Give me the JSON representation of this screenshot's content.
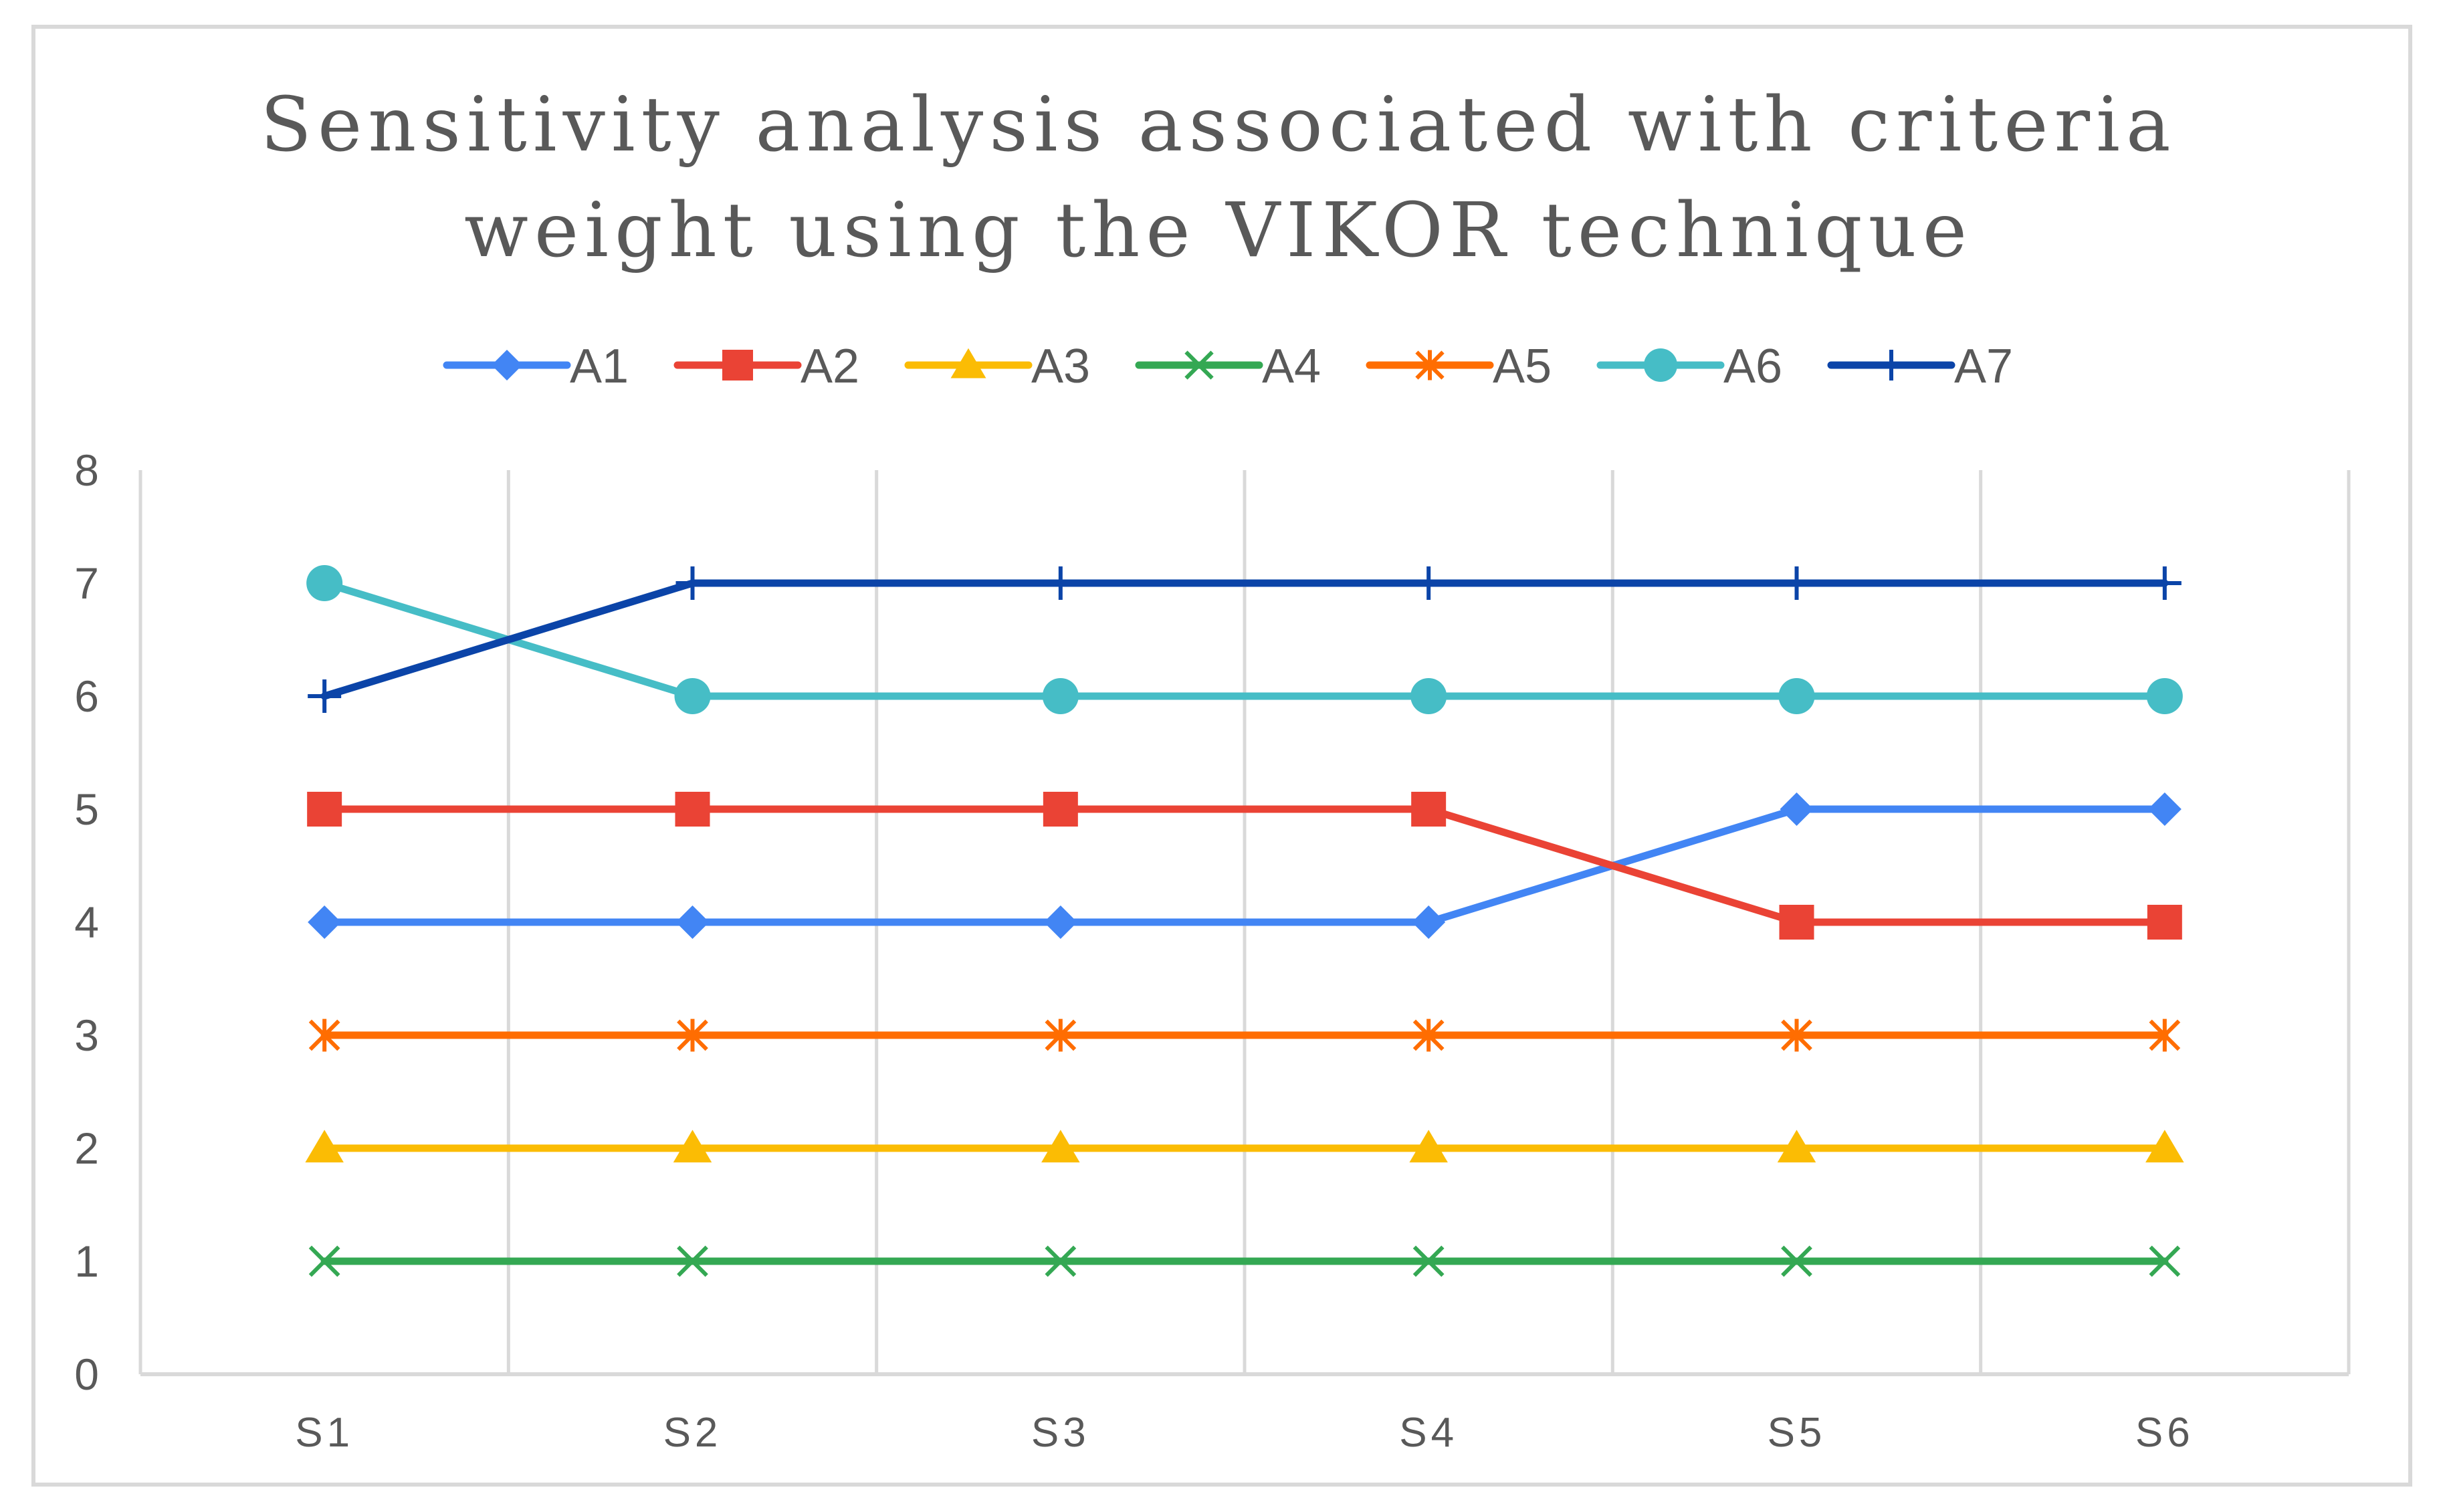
{
  "chart_data": {
    "type": "line",
    "title": "Sensitivity analysis associated with criteria weight using the VIKOR technique",
    "title_lines": [
      "Sensitivity analysis associated with criteria",
      "weight using the VIKOR technique"
    ],
    "xlabel": "",
    "ylabel": "",
    "categories": [
      "S1",
      "S2",
      "S3",
      "S4",
      "S5",
      "S6"
    ],
    "ylim": [
      0,
      8
    ],
    "yticks": [
      0,
      1,
      2,
      3,
      4,
      5,
      6,
      7,
      8
    ],
    "grid": "vertical",
    "legend_position": "top",
    "series": [
      {
        "name": "A1",
        "color": "#4285F4",
        "marker": "diamond",
        "values": [
          4,
          4,
          4,
          4,
          5,
          5
        ]
      },
      {
        "name": "A2",
        "color": "#EA4335",
        "marker": "square",
        "values": [
          5,
          5,
          5,
          5,
          4,
          4
        ]
      },
      {
        "name": "A3",
        "color": "#FBBC04",
        "marker": "triangle",
        "values": [
          2,
          2,
          2,
          2,
          2,
          2
        ]
      },
      {
        "name": "A4",
        "color": "#34A853",
        "marker": "x",
        "values": [
          1,
          1,
          1,
          1,
          1,
          1
        ]
      },
      {
        "name": "A5",
        "color": "#FF6D01",
        "marker": "star",
        "values": [
          3,
          3,
          3,
          3,
          3,
          3
        ]
      },
      {
        "name": "A6",
        "color": "#46BDC6",
        "marker": "circle",
        "values": [
          7,
          6,
          6,
          6,
          6,
          6
        ]
      },
      {
        "name": "A7",
        "color": "#0B44A8",
        "marker": "plus",
        "values": [
          6,
          7,
          7,
          7,
          7,
          7
        ]
      }
    ]
  },
  "colors": {
    "frame_border": "#D9D9D9",
    "gridline": "#D9D9D9",
    "axis_line": "#D9D9D9",
    "text": "#595959"
  }
}
